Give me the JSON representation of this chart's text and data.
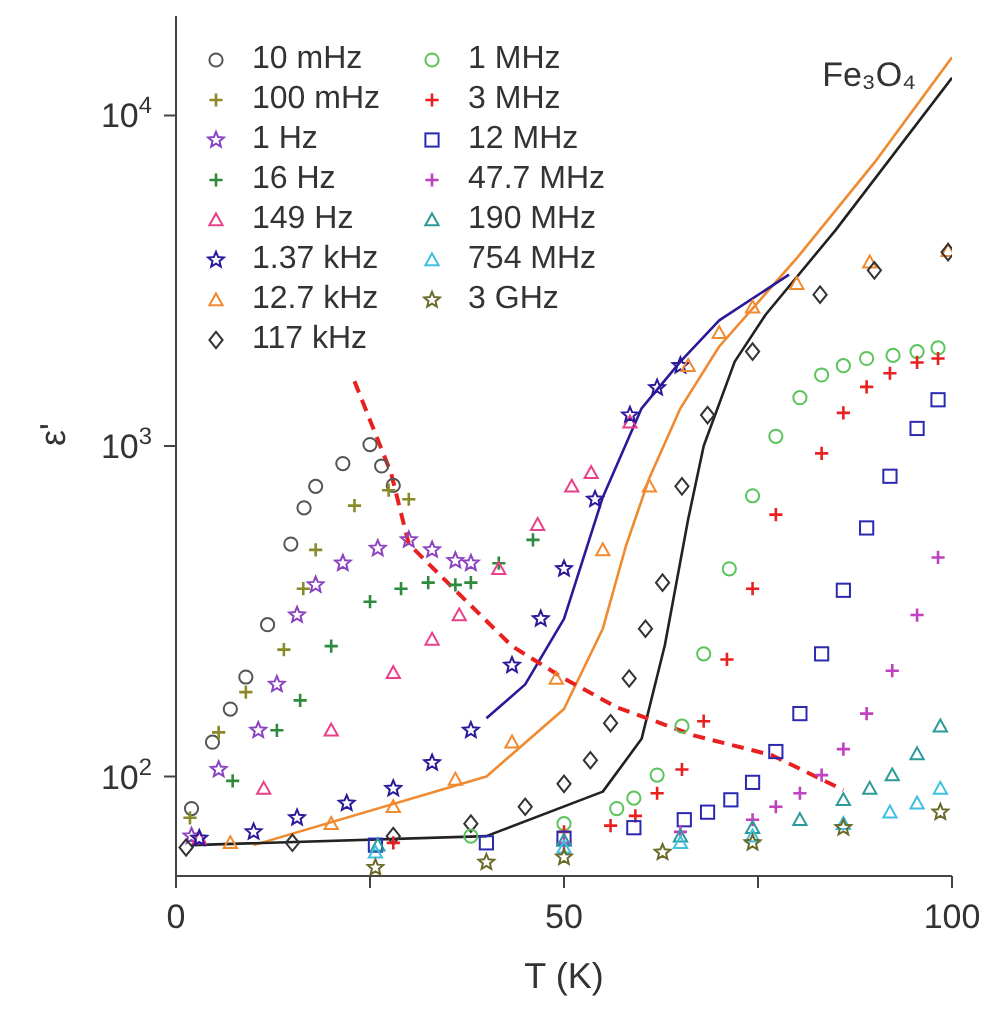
{
  "chart_data": {
    "type": "scatter",
    "xlabel": "T (K)",
    "ylabel": "ε'",
    "annotations": [
      "Fe₃O₄"
    ],
    "log": "y",
    "legend": "top left",
    "xlim": [
      0,
      100
    ],
    "xticks": [
      0,
      {
        "value": 25,
        "label": null
      },
      50,
      {
        "value": 75,
        "label": null
      },
      100
    ],
    "ylim": [
      50,
      20000
    ],
    "yticks": [
      {
        "value": 100,
        "label": "10$^{2}$"
      },
      {
        "value": 1000,
        "label": "10$^{3}$"
      },
      {
        "value": 10000,
        "label": "10$^{4}$"
      }
    ],
    "series": [
      {
        "name": "10 mHz",
        "color": "#555555",
        "marker": "circle",
        "x": [
          2,
          4.7,
          7,
          9,
          11.8,
          14.8,
          16.5,
          18,
          21.5,
          25,
          26.5,
          28
        ],
        "values": [
          80,
          127,
          160,
          200,
          288,
          505,
          650,
          755,
          885,
          1010,
          870,
          760
        ]
      },
      {
        "name": "100 mHz",
        "color": "#8a8a2a",
        "marker": "cross",
        "x": [
          1.8,
          5.5,
          9,
          13.9,
          16.4,
          18,
          23,
          27.4,
          30
        ],
        "values": [
          75,
          136,
          180,
          242,
          370,
          485,
          660,
          735,
          690
        ]
      },
      {
        "name": "1 Hz",
        "color": "#8a44c0",
        "marker": "star",
        "x": [
          2,
          5.5,
          10.6,
          13,
          15.6,
          18,
          21.5,
          26,
          30,
          33,
          36,
          38
        ],
        "values": [
          66,
          105,
          138,
          190,
          308,
          380,
          442,
          490,
          520,
          485,
          450,
          442
        ]
      },
      {
        "name": "16 Hz",
        "color": "#2e8b3e",
        "marker": "cross",
        "x": [
          7.3,
          13,
          16,
          20,
          25,
          29,
          32.5,
          36,
          38,
          41.6,
          46
        ],
        "values": [
          97,
          138,
          170,
          248,
          338,
          370,
          386,
          380,
          386,
          442,
          520
        ]
      },
      {
        "name": "149 Hz",
        "color": "#e8408a",
        "marker": "triangle",
        "x": [
          3,
          11.3,
          20,
          28,
          33,
          36.5,
          41.6,
          46.6,
          51,
          53.5,
          58.5
        ],
        "values": [
          65,
          92,
          138,
          206,
          260,
          308,
          425,
          578,
          755,
          830,
          1180
        ]
      },
      {
        "name": "1.37 kHz",
        "color": "#2a1a9a",
        "marker": "star",
        "x": [
          3,
          10,
          15.6,
          22,
          28,
          33,
          38,
          43.3,
          47,
          50,
          54,
          58.5,
          62,
          65
        ],
        "values": [
          65,
          68,
          75,
          83,
          92,
          110,
          138,
          217,
          300,
          425,
          690,
          1240,
          1500,
          1750
        ]
      },
      {
        "name": "12.7 kHz",
        "color": "#f08a30",
        "marker": "triangle",
        "x": [
          7,
          20,
          28,
          36,
          43.3,
          49,
          55,
          61,
          66,
          70,
          74.3,
          80,
          89.4,
          99.5
        ],
        "values": [
          63,
          72,
          81,
          98,
          127,
          198,
          485,
          755,
          1750,
          2200,
          2630,
          3100,
          3600,
          3900
        ]
      },
      {
        "name": "117 kHz",
        "color": "#333333",
        "marker": "diamond",
        "x": [
          1.3,
          15,
          28,
          38,
          45,
          50,
          53.4,
          56,
          58.4,
          60.5,
          62.7,
          65.2,
          68.5,
          74.3,
          83,
          90,
          99.5
        ],
        "values": [
          61,
          63,
          66,
          72,
          81,
          95,
          112,
          145,
          198,
          280,
          386,
          755,
          1240,
          1930,
          2870,
          3400,
          3860
        ]
      },
      {
        "name": "1 MHz",
        "color": "#5cc45c",
        "marker": "circle",
        "x": [
          38,
          50,
          56.8,
          59,
          62,
          65.2,
          68,
          71.3,
          74.3,
          77.3,
          80.4,
          83.2,
          86,
          89,
          92.4,
          95.5,
          98.2
        ],
        "values": [
          66,
          72,
          80,
          86,
          101,
          142,
          235,
          425,
          707,
          1070,
          1400,
          1640,
          1750,
          1840,
          1880,
          1930,
          1980
        ]
      },
      {
        "name": "3 MHz",
        "color": "#e82020",
        "marker": "cross",
        "x": [
          28,
          50,
          56,
          59.2,
          62,
          65.2,
          68,
          71,
          74.3,
          77.3,
          83.2,
          86,
          89,
          92,
          95.5,
          98.2
        ],
        "values": [
          63,
          68,
          71,
          76,
          89,
          105,
          147,
          226,
          370,
          620,
          950,
          1260,
          1510,
          1660,
          1790,
          1840
        ]
      },
      {
        "name": "12 MHz",
        "color": "#2a2ab0",
        "marker": "square",
        "x": [
          25.7,
          40,
          50,
          59,
          65.5,
          68.5,
          71.5,
          74.3,
          77.3,
          80.4,
          83.2,
          86,
          89,
          92,
          95.5,
          98.2
        ],
        "values": [
          62,
          63,
          65,
          70,
          74,
          78,
          85,
          96,
          119,
          155,
          235,
          366,
          565,
          810,
          1130,
          1380
        ]
      },
      {
        "name": "47.7 MHz",
        "color": "#c040c0",
        "marker": "cross",
        "x": [
          50,
          65,
          74.3,
          77.3,
          80.4,
          83.2,
          86,
          89,
          92.3,
          95.5,
          98.2
        ],
        "values": [
          63,
          68,
          74,
          81,
          89,
          101,
          121,
          155,
          209,
          308,
          460
        ]
      },
      {
        "name": "190 MHz",
        "color": "#2a9a9a",
        "marker": "triangle",
        "x": [
          26,
          50,
          65,
          74.3,
          80.4,
          86,
          89.4,
          92.3,
          95.5,
          98.5
        ],
        "values": [
          62,
          64,
          66,
          70,
          74,
          85,
          92,
          101,
          117,
          142
        ]
      },
      {
        "name": "754 MHz",
        "color": "#40c0e0",
        "marker": "triangle",
        "x": [
          25.7,
          50,
          65,
          74.3,
          86,
          92,
          95.5,
          98.5
        ],
        "values": [
          59,
          61,
          63,
          66,
          72,
          78,
          83,
          92
        ]
      },
      {
        "name": "3 GHz",
        "color": "#6a6a2a",
        "marker": "star",
        "x": [
          25.7,
          40,
          50,
          62.7,
          74.3,
          86,
          98.5
        ],
        "values": [
          53,
          55,
          57,
          59,
          63,
          70,
          78
        ]
      },
      {
        "type": "line",
        "color": "#f08a30",
        "marker": "none",
        "line_style": "solid",
        "x": [
          10,
          40,
          50,
          55,
          58,
          61,
          65,
          70,
          80,
          90,
          100
        ],
        "values": [
          62,
          100,
          160,
          280,
          500,
          800,
          1300,
          2000,
          3700,
          7200,
          15000
        ]
      },
      {
        "type": "line",
        "color": "#222222",
        "marker": "none",
        "line_style": "solid",
        "x": [
          2,
          40,
          55,
          60,
          63,
          66,
          68,
          72,
          76,
          85,
          100
        ],
        "values": [
          62,
          66,
          90,
          130,
          250,
          600,
          1000,
          1800,
          2500,
          4500,
          13000
        ]
      },
      {
        "type": "line",
        "color": "#2a1a9a",
        "marker": "none",
        "line_style": "solid",
        "x": [
          40,
          45,
          50,
          55,
          60,
          65,
          70,
          79
        ],
        "values": [
          150,
          190,
          300,
          700,
          1300,
          1800,
          2400,
          3300
        ]
      },
      {
        "type": "line",
        "color": "#e82020",
        "marker": "none",
        "line_style": "dashed",
        "x": [
          23,
          27.7,
          30,
          35,
          43.3,
          50,
          56.8,
          66.8,
          76.8,
          86
        ],
        "values": [
          1570,
          830,
          505,
          386,
          248,
          198,
          162,
          133,
          116,
          91
        ]
      }
    ]
  }
}
